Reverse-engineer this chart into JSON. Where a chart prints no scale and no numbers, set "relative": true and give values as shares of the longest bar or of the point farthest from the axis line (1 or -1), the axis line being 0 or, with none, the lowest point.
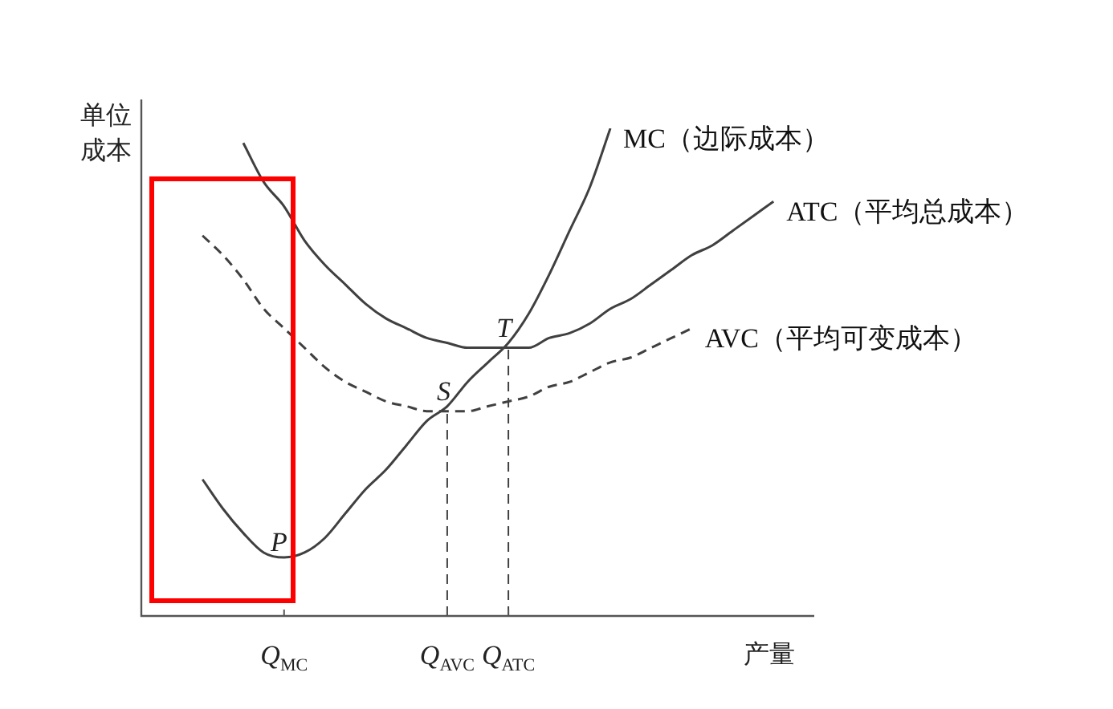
{
  "chart_data": {
    "type": "line",
    "relative": true,
    "xlabel": "产量",
    "ylabel": "单位成本",
    "categories": [
      null,
      null,
      null,
      null,
      null,
      null,
      null,
      "Q$_{MC}$",
      null,
      null,
      null,
      null,
      null,
      null,
      null,
      "Q$_{AVC}$",
      null,
      null,
      "Q$_{ATC}$",
      null,
      null,
      null,
      null,
      null,
      null,
      null,
      null,
      null,
      null,
      null,
      null,
      null,
      null,
      null
    ],
    "series": [
      {
        "name": "MC（边际成本）",
        "color": "#404040",
        "line_style": "solid",
        "values": [
          null,
          null,
          null,
          0.28,
          0.22,
          0.17,
          0.13,
          0.12,
          0.13,
          0.16,
          0.21,
          0.26,
          0.3,
          0.35,
          0.4,
          0.43,
          0.48,
          0.52,
          0.56,
          0.62,
          0.7,
          0.79,
          0.88,
          1,
          null,
          null,
          null,
          null,
          null,
          null,
          null,
          null,
          null,
          null
        ]
      },
      {
        "name": "ATC（平均总成本）",
        "color": "#404040",
        "line_style": "solid",
        "values": [
          null,
          null,
          null,
          null,
          null,
          0.97,
          0.89,
          0.84,
          0.77,
          0.72,
          0.68,
          0.64,
          0.61,
          0.59,
          0.57,
          0.56,
          0.55,
          0.55,
          0.55,
          0.55,
          0.57,
          0.58,
          0.6,
          0.63,
          0.65,
          0.68,
          0.71,
          0.74,
          0.76,
          0.79,
          0.82,
          0.85,
          null,
          null
        ]
      },
      {
        "name": "AVC（平均可变成本）",
        "color": "#404040",
        "line_style": "dashed",
        "values": [
          null,
          null,
          null,
          0.78,
          0.74,
          0.69,
          0.63,
          0.59,
          0.55,
          0.51,
          0.48,
          0.46,
          0.44,
          0.43,
          0.42,
          0.42,
          0.42,
          0.43,
          0.44,
          0.45,
          0.47,
          0.48,
          0.5,
          0.52,
          0.53,
          0.55,
          0.57,
          0.59,
          null,
          null,
          null,
          null,
          null,
          null
        ]
      }
    ],
    "ref_lines": [
      {
        "axis": "x",
        "value": "Q$_{AVC}$",
        "line_style": "dashed",
        "color": "#404040"
      },
      {
        "axis": "x",
        "value": "Q$_{ATC}$",
        "line_style": "dashed",
        "color": "#404040"
      }
    ],
    "annotations": [
      {
        "text": "P",
        "x": "Q$_{MC}$",
        "y": 0.12
      },
      {
        "text": "S",
        "x": "Q$_{AVC}$",
        "y": 0.43
      },
      {
        "text": "T",
        "x": "Q$_{ATC}$",
        "y": 0.56
      }
    ],
    "grid": false,
    "legend": false,
    "marker": "none",
    "tick_labels": "x"
  }
}
